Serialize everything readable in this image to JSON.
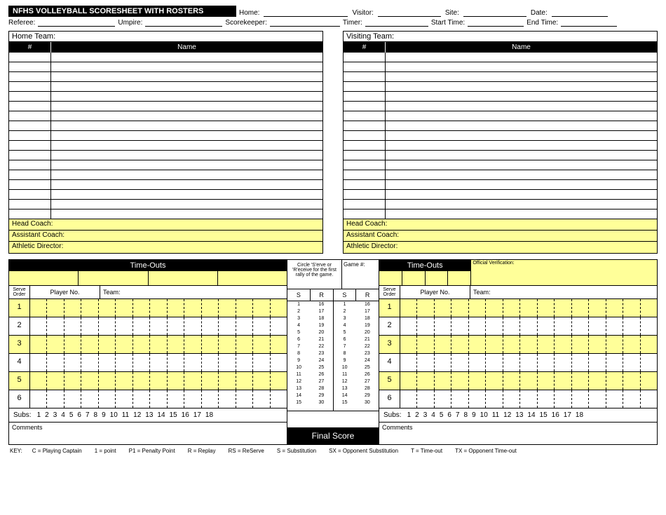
{
  "title": "NFHS VOLLEYBALL SCORESHEET WITH ROSTERS",
  "header": {
    "home": "Home:",
    "visitor": "Visitor:",
    "site": "Site:",
    "date": "Date:",
    "referee": "Referee:",
    "umpire": "Umpire:",
    "scorekeeper": "Scorekeeper:",
    "timer": "Timer:",
    "start_time": "Start Time:",
    "end_time": "End Time:"
  },
  "roster": {
    "home_title": "Home Team:",
    "visit_title": "Visiting Team:",
    "col_num": "#",
    "col_name": "Name",
    "rows": 17,
    "head_coach": "Head Coach:",
    "asst_coach": "Assistant Coach:",
    "ath_dir": "Athletic Director:"
  },
  "timeouts": {
    "label": "Time-Outs",
    "official_verification": "Official Verification:",
    "serve_order": "Serve Order",
    "player_no": "Player No.",
    "team": "Team:",
    "orders": [
      1,
      2,
      3,
      4,
      5,
      6
    ],
    "subs_label": "Subs:",
    "sub_nums": [
      1,
      2,
      3,
      4,
      5,
      6,
      7,
      8,
      9,
      10,
      11,
      12,
      13,
      14,
      15,
      16,
      17,
      18
    ],
    "comments": "Comments"
  },
  "mid": {
    "circle_text": "Circle 'S'erve or 'R'eceive for the first rally of the game.",
    "game_no": "Game #:",
    "S": "S",
    "R": "R",
    "col_a": [
      1,
      2,
      3,
      4,
      5,
      6,
      7,
      8,
      9,
      10,
      11,
      12,
      13,
      14,
      15
    ],
    "col_b": [
      16,
      17,
      18,
      19,
      20,
      21,
      22,
      23,
      24,
      25,
      26,
      27,
      28,
      29,
      30
    ],
    "final_score": "Final Score"
  },
  "key": {
    "label": "KEY:",
    "items": [
      "C = Playing Captain",
      "1 = point",
      "P1 = Penalty Point",
      "R = Replay",
      "RS = ReServe",
      "S = Substitution",
      "SX = Opponent Substitution",
      "T = Time-out",
      "TX = Opponent Time-out"
    ]
  },
  "colors": {
    "yellow": "#ffff99",
    "black": "#000000"
  }
}
